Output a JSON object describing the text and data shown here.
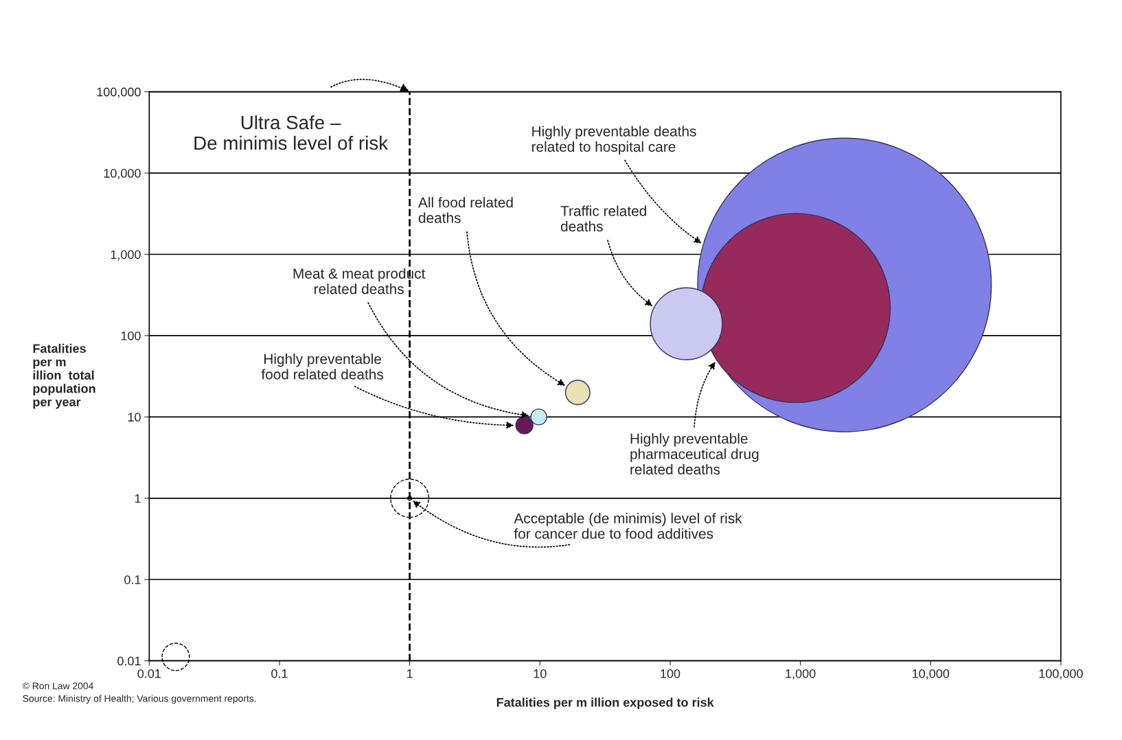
{
  "chart_data": {
    "type": "bubble",
    "xlabel": "Fatalities per m illion exposed to risk",
    "ylabel": "Fatalities\nper m\nillion  total\npopulation\nper year",
    "log": "xy",
    "grid": "y",
    "legend": false,
    "xlim": [
      0.01,
      100000
    ],
    "ylim": [
      0.01,
      100000
    ],
    "xticks": [
      {
        "value": 0.01,
        "label": "0.01"
      },
      {
        "value": 0.1,
        "label": "0.1"
      },
      {
        "value": 1,
        "label": "1"
      },
      {
        "value": 10,
        "label": "10"
      },
      {
        "value": 100,
        "label": "100"
      },
      {
        "value": 1000,
        "label": "1,000"
      },
      {
        "value": 10000,
        "label": "10,000"
      },
      {
        "value": 100000,
        "label": "100,000"
      }
    ],
    "yticks": [
      {
        "value": 0.01,
        "label": "0.01"
      },
      {
        "value": 0.1,
        "label": "0.1"
      },
      {
        "value": 1,
        "label": "1"
      },
      {
        "value": 10,
        "label": "10"
      },
      {
        "value": 100,
        "label": "100"
      },
      {
        "value": 1000,
        "label": "1,000"
      },
      {
        "value": 10000,
        "label": "10,000"
      },
      {
        "value": 100000,
        "label": "100,000"
      }
    ],
    "ref_lines": [
      {
        "axis": "x",
        "value": 1,
        "label": "Ultra Safe –\nDe minimis level of risk",
        "color": "#000000",
        "line_style": "dashed"
      }
    ],
    "series": [
      {
        "name": "Highly preventable deaths\nrelated to hospital care",
        "color": "#8080e6",
        "x": [
          2180
        ],
        "values": [
          420
        ],
        "sizes": [
          1
        ]
      },
      {
        "name": "Highly preventable\npharmaceutical drug\nrelated deaths",
        "color": "#962a5c",
        "x": [
          920
        ],
        "values": [
          219
        ],
        "sizes": [
          0.415
        ]
      },
      {
        "name": "Traffic related\ndeaths",
        "color": "#c9c9f2",
        "x": [
          133
        ],
        "values": [
          140
        ],
        "sizes": [
          0.06
        ]
      },
      {
        "name": "All food related\ndeaths",
        "color": "#e8e2b4",
        "x": [
          19.5
        ],
        "values": [
          20
        ],
        "sizes": [
          0.0069
        ]
      },
      {
        "name": "Meat & meat product\nrelated deaths",
        "color": "#c6ecf2",
        "x": [
          9.8
        ],
        "values": [
          10
        ],
        "sizes": [
          0.0029
        ]
      },
      {
        "name": "Highly preventable\nfood related deaths",
        "color": "#6a1658",
        "x": [
          7.6
        ],
        "values": [
          7.9
        ],
        "sizes": [
          0.0034
        ]
      },
      {
        "name": "Acceptable (de minimis) level of risk\nfor cancer due to food additives",
        "color": "#000000",
        "type": "scatter",
        "x": [
          1
        ],
        "values": [
          1
        ]
      }
    ],
    "annotations": [
      "© Ron Law 2004",
      "Source: Ministry of Health; Various government reports."
    ]
  }
}
